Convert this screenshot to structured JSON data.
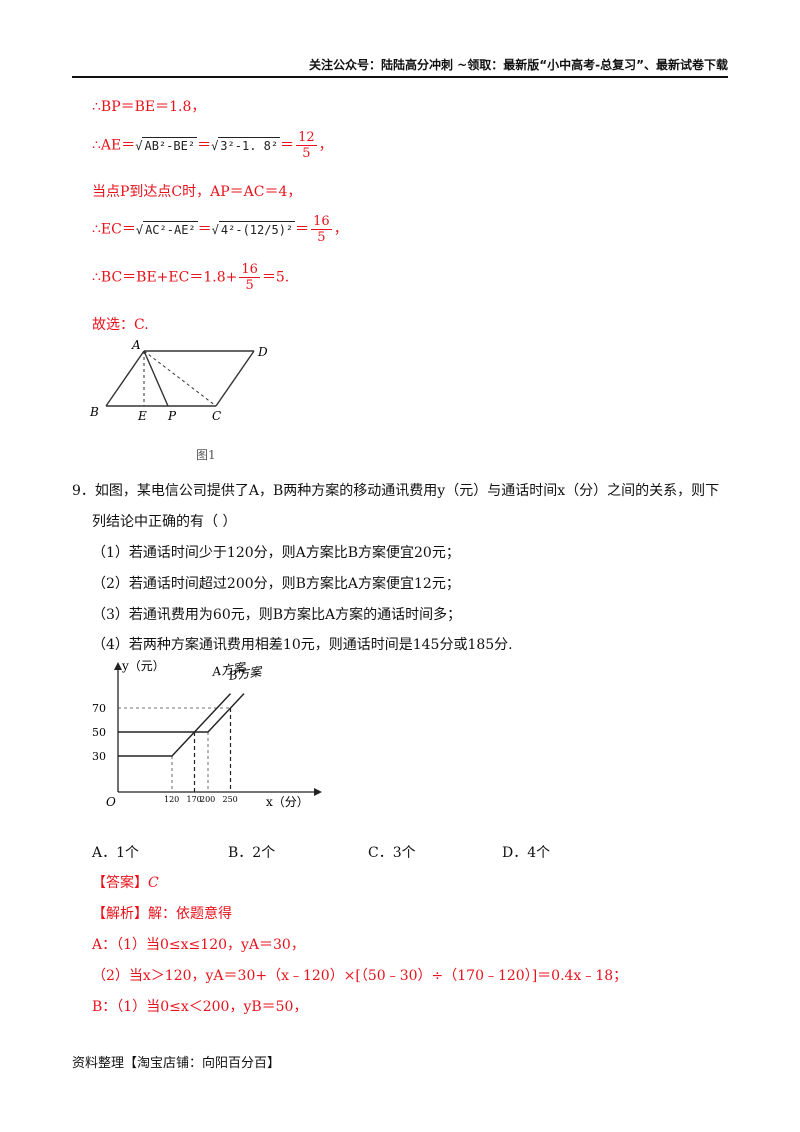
{
  "header": {
    "text": "关注公众号：陆陆高分冲刺  ~领取：最新版“小中高考-总复习”、最新试卷下载"
  },
  "solution8": {
    "l1": "∴BP＝BE＝1.8，",
    "l2_pre": "∴AE＝",
    "l2_rad1": "AB²-BE²",
    "l2_eq": "＝",
    "l2_rad2": "3²-1. 8²",
    "l2_eq2": "＝",
    "l2_num": "12",
    "l2_den": "5",
    "l2_end": "，",
    "l3": "当点P到达点C时，AP＝AC＝4，",
    "l4_pre": "∴EC＝",
    "l4_rad1": "AC²-AE²",
    "l4_eq": "＝",
    "l4_rad2": "4²-(12/5)²",
    "l4_eq2": "＝",
    "l4_num": "16",
    "l4_den": "5",
    "l4_end": "，",
    "l5_pre": "∴BC＝BE+EC＝1.8+",
    "l5_num": "16",
    "l5_den": "5",
    "l5_end": "＝5.",
    "l6": "故选：C."
  },
  "figure1": {
    "labels": {
      "A": "A",
      "D": "D",
      "B": "B",
      "E": "E",
      "P": "P",
      "C": "C"
    },
    "caption": "图1"
  },
  "question9": {
    "stem1": "9．如图，某电信公司提供了A，B两种方案的移动通讯费用y（元）与通话时间x（分）之间的关系，则下",
    "stem2": "列结论中正确的有（      ）",
    "items": [
      "（1）若通话时间少于120分，则A方案比B方案便宜20元；",
      "（2）若通话时间超过200分，则B方案比A方案便宜12元；",
      "（3）若通讯费用为60元，则B方案比A方案的通话时间多；",
      "（4）若两种方案通讯费用相差10元，则通话时间是145分或185分."
    ]
  },
  "chart_data": {
    "type": "line",
    "xlabel": "x（分）",
    "ylabel": "y（元）",
    "origin_label": "O",
    "x_ticks": [
      120,
      170,
      200,
      250
    ],
    "y_ticks": [
      30,
      50,
      70
    ],
    "series": [
      {
        "name": "A方案",
        "points": [
          [
            0,
            30
          ],
          [
            120,
            30
          ],
          [
            250,
            82
          ]
        ]
      },
      {
        "name": "B方案",
        "points": [
          [
            0,
            50
          ],
          [
            200,
            50
          ],
          [
            280,
            82
          ]
        ]
      }
    ]
  },
  "options": [
    "A．1个",
    "B．2个",
    "C．3个",
    "D．4个"
  ],
  "answer": {
    "label": "【答案】",
    "value": "C"
  },
  "analysis": {
    "label": "【解析】",
    "intro": "解：依题意得",
    "a1": "A：（1）当0≤x≤120，yA＝30，",
    "a2": "（2）当x＞120，yA＝30+（x﹣120）×[（50﹣30）÷（170﹣120）]＝0.4x﹣18；",
    "b1": "B：（1）当0≤x＜200，yB＝50，"
  },
  "footer": {
    "text": "资料整理【淘宝店铺：向阳百分百】"
  }
}
